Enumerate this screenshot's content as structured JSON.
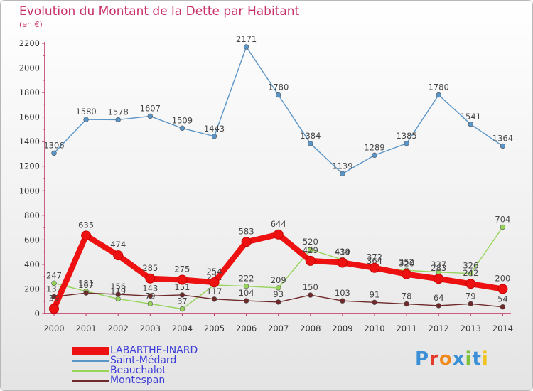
{
  "header": {
    "title": "Evolution du Montant de la Dette par Habitant",
    "subtitle": "(en €)"
  },
  "brand": {
    "logo_text": "Proxiti",
    "letter_colors": [
      "#3b8fd6",
      "#e53b2b",
      "#f08a1c",
      "#3b8fd6",
      "#7cc13a",
      "#3b8fd6",
      "#f0c41c"
    ]
  },
  "chart_data": {
    "type": "line",
    "title": "Evolution du Montant de la Dette par Habitant",
    "subtitle": "(en €)",
    "xlabel": "",
    "ylabel": "",
    "x": [
      "2000",
      "2001",
      "2002",
      "2003",
      "2004",
      "2005",
      "2006",
      "2007",
      "2008",
      "2009",
      "2010",
      "2011",
      "2012",
      "2013",
      "2014"
    ],
    "ylim": [
      0,
      2200
    ],
    "yticks": [
      0,
      200,
      400,
      600,
      800,
      1000,
      1200,
      1400,
      1600,
      1800,
      2000,
      2200
    ],
    "grid": false,
    "legend_position": "bottom-left",
    "series": [
      {
        "name": "Saint-Médard",
        "color": "#5a95c8",
        "values": [
          1306,
          1580,
          1578,
          1607,
          1509,
          1443,
          2171,
          1780,
          1384,
          1139,
          1289,
          1385,
          1780,
          1541,
          1364
        ]
      },
      {
        "name": "Beauchalot",
        "color": "#96d45a",
        "values": [
          247,
          181,
          119,
          79,
          37,
          232,
          222,
          209,
          520,
          439,
          364,
          352,
          337,
          326,
          704
        ]
      },
      {
        "name": "Montespan",
        "color": "#6e2a2a",
        "values": [
          137,
          167,
          156,
          143,
          151,
          117,
          104,
          93,
          150,
          103,
          91,
          78,
          64,
          79,
          54
        ]
      },
      {
        "name": "LABARTHE-INARD",
        "color": "#ee1111",
        "highlight": true,
        "values": [
          39,
          635,
          474,
          285,
          275,
          254,
          583,
          644,
          429,
          414,
          372,
          320,
          283,
          242,
          200
        ]
      }
    ]
  },
  "legend": {
    "items": [
      {
        "label": "LABARTHE-INARD",
        "color": "#ee1111",
        "thick": true
      },
      {
        "label": "Saint-Médard",
        "color": "#5a95c8",
        "thick": false
      },
      {
        "label": "Beauchalot",
        "color": "#96d45a",
        "thick": false
      },
      {
        "label": "Montespan",
        "color": "#6e2a2a",
        "thick": false
      }
    ]
  }
}
